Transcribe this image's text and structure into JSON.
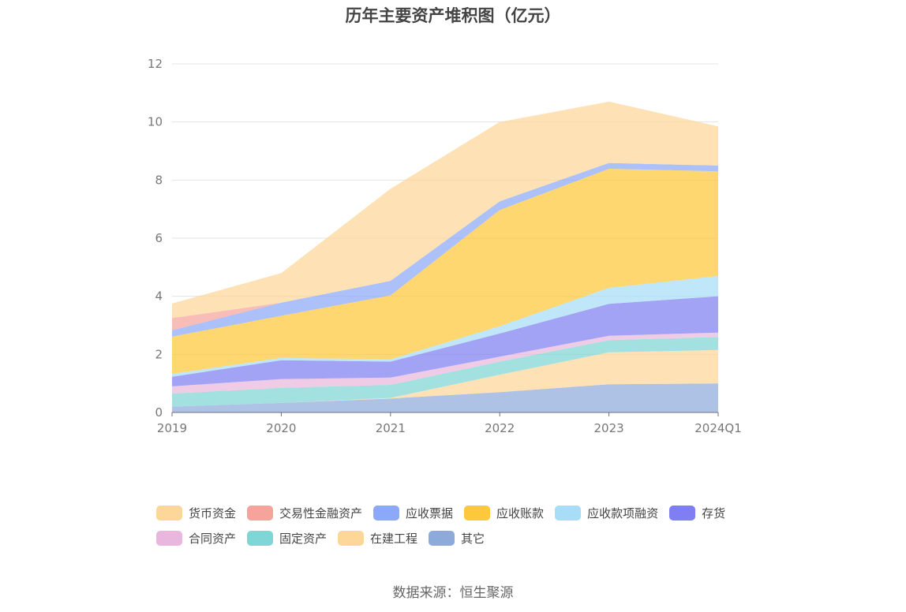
{
  "chart_data": {
    "type": "area",
    "stacked": true,
    "title": "历年主要资产堆积图（亿元）",
    "categories": [
      "2019",
      "2020",
      "2021",
      "2022",
      "2023",
      "2024Q1"
    ],
    "ylim": [
      0,
      12
    ],
    "yticks": [
      0,
      2,
      4,
      6,
      8,
      10,
      12
    ],
    "grid": true,
    "legend_position": "bottom",
    "series": [
      {
        "name": "其它",
        "color": "#8eaadb",
        "values": [
          0.2,
          0.33,
          0.48,
          0.7,
          0.97,
          1.0
        ]
      },
      {
        "name": "在建工程",
        "color": "#fdd79a",
        "values": [
          0.0,
          0.0,
          0.02,
          0.6,
          1.1,
          1.15
        ]
      },
      {
        "name": "固定资产",
        "color": "#7fd6d6",
        "values": [
          0.45,
          0.52,
          0.45,
          0.45,
          0.42,
          0.45
        ]
      },
      {
        "name": "合同资产",
        "color": "#e9b7dd",
        "values": [
          0.25,
          0.3,
          0.25,
          0.17,
          0.15,
          0.15
        ]
      },
      {
        "name": "存货",
        "color": "#7f7ff3",
        "values": [
          0.33,
          0.65,
          0.55,
          0.8,
          1.1,
          1.25
        ]
      },
      {
        "name": "应收款项融资",
        "color": "#a8ddf7",
        "values": [
          0.1,
          0.08,
          0.08,
          0.25,
          0.55,
          0.7
        ]
      },
      {
        "name": "应收账款",
        "color": "#fdc83a",
        "values": [
          1.28,
          1.45,
          2.2,
          4.0,
          4.1,
          3.6
        ]
      },
      {
        "name": "应收票据",
        "color": "#8ca8f8",
        "values": [
          0.22,
          0.45,
          0.5,
          0.3,
          0.2,
          0.2
        ]
      },
      {
        "name": "交易性金融资产",
        "color": "#f6a39c",
        "values": [
          0.42,
          0.0,
          0.0,
          0.0,
          0.0,
          0.0
        ]
      },
      {
        "name": "货币资金",
        "color": "#fdd79a",
        "values": [
          0.5,
          1.02,
          3.17,
          2.73,
          2.11,
          1.35
        ]
      }
    ],
    "legend_order": [
      "货币资金",
      "交易性金融资产",
      "应收票据",
      "应收账款",
      "应收款项融资",
      "存货",
      "合同资产",
      "固定资产",
      "在建工程",
      "其它"
    ],
    "source": "数据来源：恒生聚源"
  }
}
